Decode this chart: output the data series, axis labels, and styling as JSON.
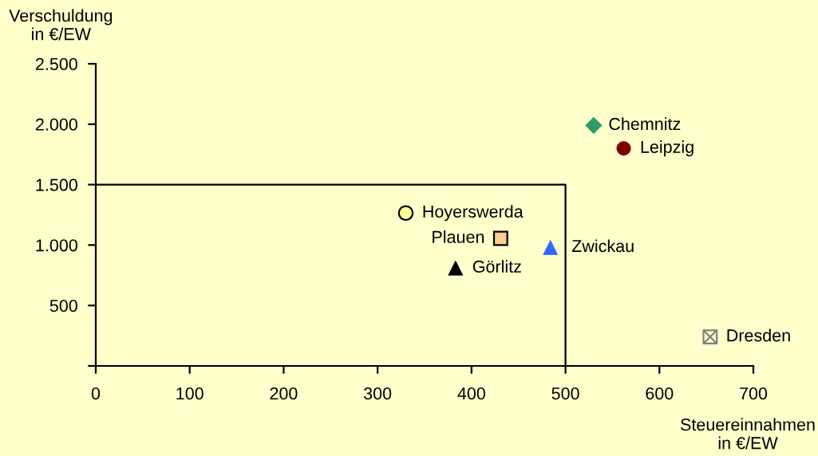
{
  "chart_data": {
    "type": "scatter",
    "xlabel": "Steuereinnahmen\nin €/EW",
    "ylabel": "Verschuldung\nin €/EW",
    "xlim": [
      0,
      700
    ],
    "xticks": [
      0,
      100,
      200,
      300,
      400,
      500,
      600,
      700
    ],
    "ylim": [
      0,
      2500
    ],
    "yticks": [
      {
        "value": 0,
        "label": null
      },
      {
        "value": 500,
        "label": "500"
      },
      {
        "value": 1000,
        "label": "1.000"
      },
      {
        "value": 1500,
        "label": "1.500"
      },
      {
        "value": 2000,
        "label": "2.000"
      },
      {
        "value": 2500,
        "label": "2.500"
      }
    ],
    "series": [
      {
        "type": "line",
        "x": [
          0,
          500,
          500
        ],
        "values": [
          1500,
          1500,
          0
        ],
        "color": "#000000"
      },
      {
        "name": "Chemnitz",
        "x": [
          530
        ],
        "values": [
          1990
        ],
        "color": "#339966",
        "marker": "diamond"
      },
      {
        "name": "Leipzig",
        "x": [
          562
        ],
        "values": [
          1800
        ],
        "color": "#800000",
        "marker": "circle"
      },
      {
        "name": "Hoyerswerda",
        "x": [
          330
        ],
        "values": [
          1265
        ],
        "color": "#ffff99",
        "marker": "circle"
      },
      {
        "name": "Plauen",
        "x": [
          431
        ],
        "values": [
          1055
        ],
        "color": "#ffcc99",
        "marker": "square"
      },
      {
        "name": "Zwickau",
        "x": [
          484
        ],
        "values": [
          980
        ],
        "color": "#3366ff",
        "marker": "triangle"
      },
      {
        "name": "Görlitz",
        "x": [
          383
        ],
        "values": [
          810
        ],
        "color": "#000000",
        "marker": "triangle"
      },
      {
        "name": "Dresden",
        "x": [
          654
        ],
        "values": [
          240
        ],
        "color": "#808080",
        "marker": "cross"
      }
    ]
  }
}
